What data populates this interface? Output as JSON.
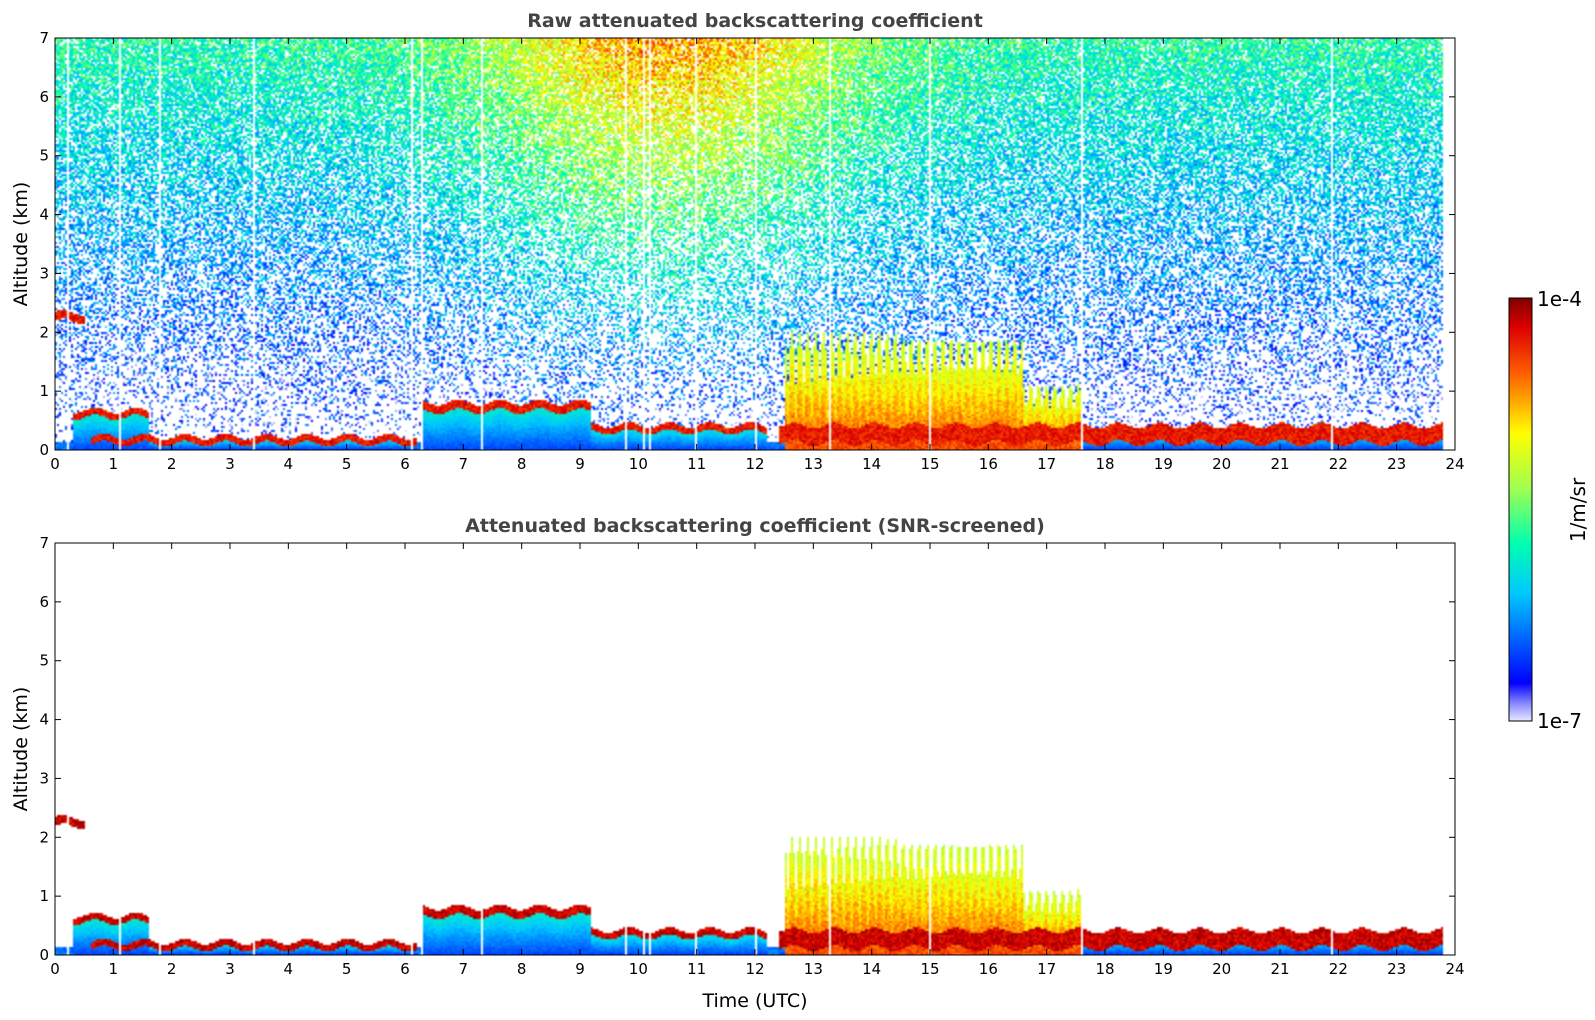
{
  "chart_data": [
    {
      "type": "heatmap",
      "title": "Raw attenuated backscattering coefficient",
      "xlabel": "",
      "ylabel": "Altitude (km)",
      "xlim": [
        0,
        24
      ],
      "ylim": [
        0,
        7
      ],
      "xticks": [
        "0",
        "1",
        "2",
        "3",
        "4",
        "5",
        "6",
        "7",
        "8",
        "9",
        "10",
        "11",
        "12",
        "13",
        "14",
        "15",
        "16",
        "17",
        "18",
        "19",
        "20",
        "21",
        "22",
        "23",
        "24"
      ],
      "yticks": [
        "0",
        "1",
        "2",
        "3",
        "4",
        "5",
        "6",
        "7"
      ],
      "noise_field": true,
      "layers": [
        {
          "name": "residual layer",
          "t0": 0.3,
          "t1": 1.6,
          "h": 0.6,
          "level": 0.95,
          "thickness": 0.12
        },
        {
          "name": "surface layer",
          "t0": 0.6,
          "t1": 6.2,
          "h": 0.15,
          "level": 0.95,
          "thickness": 0.12
        },
        {
          "name": "elevated layer",
          "t0": 0.0,
          "t1": 0.5,
          "h": 2.25,
          "level": 0.95,
          "thickness": 0.15
        },
        {
          "name": "aerosol top",
          "t0": 6.3,
          "t1": 9.2,
          "h": 0.72,
          "level": 0.95,
          "thickness": 0.15
        },
        {
          "name": "layer top",
          "t0": 9.2,
          "t1": 12.2,
          "h": 0.35,
          "level": 0.95,
          "thickness": 0.12
        },
        {
          "name": "boundary layer",
          "t0": 12.4,
          "t1": 23.8,
          "h": 0.25,
          "level": 0.95,
          "thickness": 0.3
        }
      ],
      "convective_columns": [
        {
          "t0": 12.5,
          "t1": 14.5,
          "top": 2.0
        },
        {
          "t0": 14.5,
          "t1": 16.6,
          "top": 1.9
        },
        {
          "t0": 16.6,
          "t1": 17.6,
          "top": 1.1
        }
      ]
    },
    {
      "type": "heatmap",
      "title": "Attenuated backscattering coefficient (SNR-screened)",
      "xlabel": "Time (UTC)",
      "ylabel": "Altitude (km)",
      "xlim": [
        0,
        24
      ],
      "ylim": [
        0,
        7
      ],
      "xticks": [
        "0",
        "1",
        "2",
        "3",
        "4",
        "5",
        "6",
        "7",
        "8",
        "9",
        "10",
        "11",
        "12",
        "13",
        "14",
        "15",
        "16",
        "17",
        "18",
        "19",
        "20",
        "21",
        "22",
        "23",
        "24"
      ],
      "yticks": [
        "0",
        "1",
        "2",
        "3",
        "4",
        "5",
        "6",
        "7"
      ],
      "noise_field": false,
      "layers": [
        {
          "name": "residual layer",
          "t0": 0.3,
          "t1": 1.6,
          "h": 0.6,
          "level": 0.99,
          "thickness": 0.12
        },
        {
          "name": "surface layer",
          "t0": 0.6,
          "t1": 6.2,
          "h": 0.15,
          "level": 0.99,
          "thickness": 0.12
        },
        {
          "name": "elevated layer",
          "t0": 0.0,
          "t1": 0.5,
          "h": 2.25,
          "level": 0.99,
          "thickness": 0.15
        },
        {
          "name": "aerosol top",
          "t0": 6.3,
          "t1": 9.2,
          "h": 0.72,
          "level": 0.99,
          "thickness": 0.15
        },
        {
          "name": "layer top",
          "t0": 9.2,
          "t1": 12.2,
          "h": 0.35,
          "level": 0.99,
          "thickness": 0.12
        },
        {
          "name": "boundary layer",
          "t0": 12.4,
          "t1": 23.8,
          "h": 0.25,
          "level": 0.99,
          "thickness": 0.3
        }
      ],
      "convective_columns": [
        {
          "t0": 12.5,
          "t1": 14.5,
          "top": 2.0
        },
        {
          "t0": 14.5,
          "t1": 16.6,
          "top": 1.9
        },
        {
          "t0": 16.6,
          "t1": 17.6,
          "top": 1.1
        }
      ]
    }
  ],
  "colorbar": {
    "label": "1/m/sr",
    "max_label": "1e-4",
    "min_label": "1e-7",
    "scale": "log",
    "range": [
      1e-07,
      0.0001
    ],
    "colormap": "jet"
  }
}
